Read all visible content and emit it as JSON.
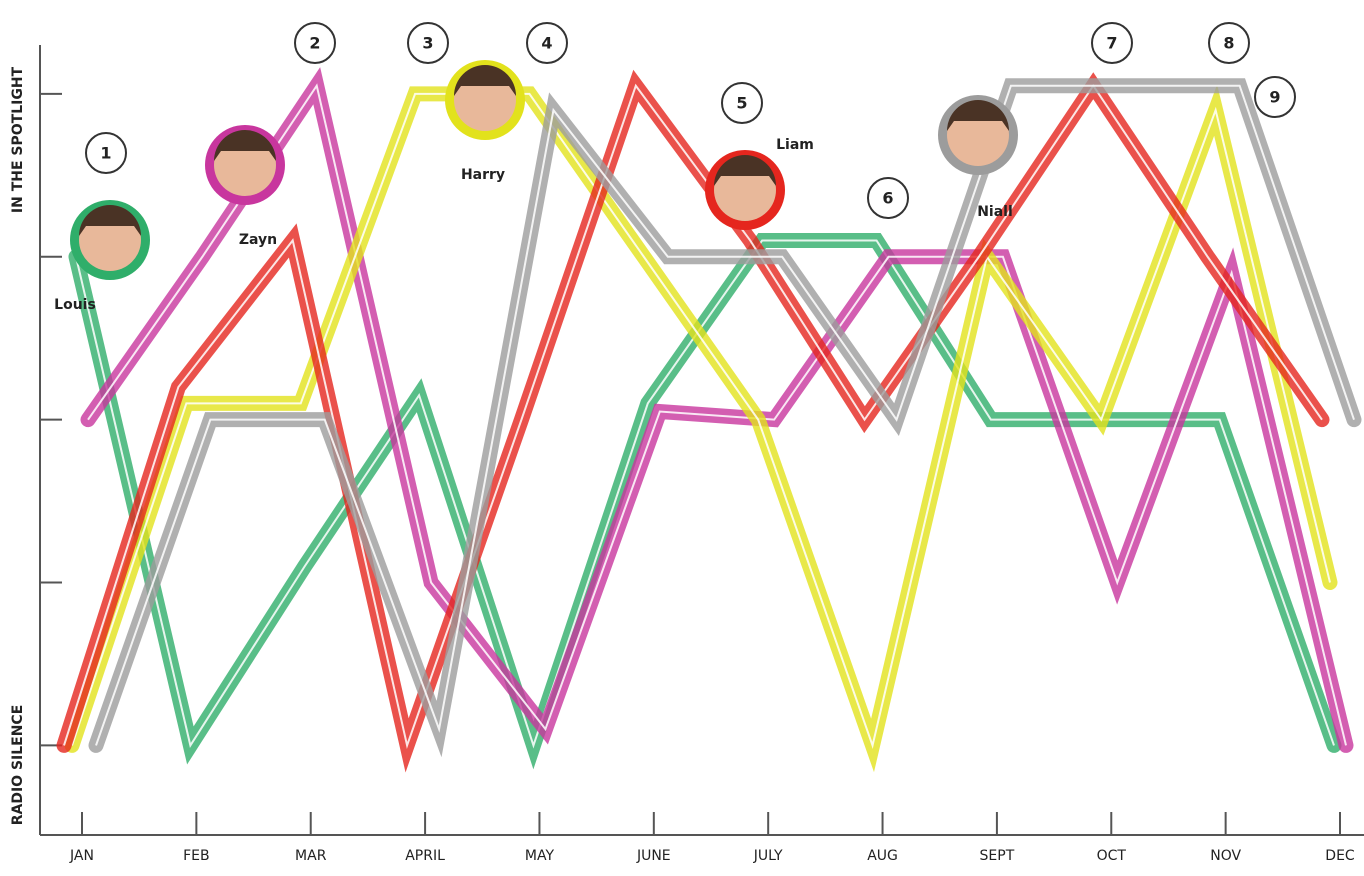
{
  "chart_data": {
    "type": "line",
    "categories": [
      "JAN",
      "FEB",
      "MAR",
      "APRIL",
      "MAY",
      "JUNE",
      "JULY",
      "AUG",
      "SEPT",
      "OCT",
      "NOV",
      "DEC"
    ],
    "y_label_top": "IN THE SPOTLIGHT",
    "y_label_bottom": "RADIO SILENCE",
    "ylim": [
      -0.55,
      4.3
    ],
    "yticks": [
      0,
      1,
      2,
      3,
      4
    ],
    "series": [
      {
        "name": "Louis",
        "color": "#2fae6a",
        "values": [
          3,
          0,
          1.1,
          2.15,
          0,
          2.1,
          3.1,
          3.1,
          2,
          2,
          2,
          0
        ]
      },
      {
        "name": "Zayn",
        "color": "#c8369e",
        "values": [
          2,
          3,
          4.05,
          1,
          0.1,
          2.05,
          2,
          3,
          3,
          1,
          2.9,
          0
        ]
      },
      {
        "name": "Harry",
        "color": "#e2e21c",
        "values": [
          0,
          2.1,
          2.1,
          4,
          4,
          3,
          2,
          0,
          3,
          2,
          3.9,
          1
        ]
      },
      {
        "name": "Liam",
        "color": "#e5261e",
        "values": [
          0,
          2.2,
          3.1,
          0,
          2,
          4.05,
          3.1,
          2,
          3,
          4.05,
          3,
          2
        ]
      },
      {
        "name": "Niall",
        "color": "#9c9c9c",
        "values": [
          0,
          2,
          2,
          0.1,
          3.9,
          3,
          3,
          2,
          4.05,
          4.05,
          4.05,
          2
        ]
      }
    ],
    "annotations": [
      "1",
      "2",
      "3",
      "4",
      "5",
      "6",
      "7",
      "8",
      "9"
    ]
  }
}
